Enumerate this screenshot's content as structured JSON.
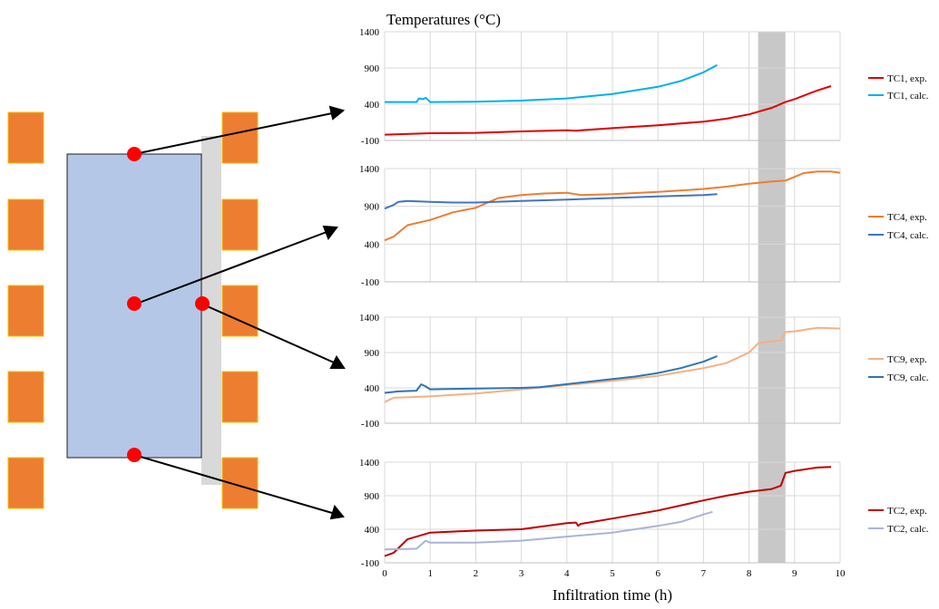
{
  "figure": {
    "title": "Temperatures (°C)",
    "xlabel": "Infiltration time (h)",
    "colors": {
      "heater": "#ed7d31",
      "heater_edge": "#f5c100",
      "sample": "#b4c7e7",
      "gap": "#d9d9d9",
      "dot": "#ff0000",
      "band": "#c8c8c8"
    }
  },
  "chart_data": [
    {
      "type": "line",
      "x_range": [
        0,
        10
      ],
      "ylim": [
        -100,
        1400
      ],
      "yticks": [
        -100,
        400,
        900,
        1400
      ],
      "xticks": [],
      "shaded_band": [
        8.2,
        8.8
      ],
      "series": [
        {
          "name": "TC1, exp.",
          "color": "#e00000",
          "points": [
            [
              0,
              -20
            ],
            [
              1,
              0
            ],
            [
              2,
              5
            ],
            [
              3,
              25
            ],
            [
              4,
              40
            ],
            [
              4.2,
              35
            ],
            [
              5,
              70
            ],
            [
              6,
              110
            ],
            [
              7,
              160
            ],
            [
              7.5,
              200
            ],
            [
              8,
              260
            ],
            [
              8.5,
              350
            ],
            [
              8.8,
              430
            ],
            [
              9,
              470
            ],
            [
              9.5,
              590
            ],
            [
              9.8,
              650
            ]
          ]
        },
        {
          "name": "TC1, calc.",
          "color": "#00b0f0",
          "points": [
            [
              0,
              430
            ],
            [
              0.7,
              430
            ],
            [
              0.75,
              480
            ],
            [
              0.85,
              470
            ],
            [
              0.9,
              490
            ],
            [
              1,
              430
            ],
            [
              2,
              435
            ],
            [
              3,
              450
            ],
            [
              4,
              480
            ],
            [
              5,
              540
            ],
            [
              6,
              640
            ],
            [
              6.5,
              720
            ],
            [
              7,
              840
            ],
            [
              7.3,
              940
            ]
          ]
        }
      ]
    },
    {
      "type": "line",
      "x_range": [
        0,
        10
      ],
      "ylim": [
        -100,
        1400
      ],
      "yticks": [
        -100,
        400,
        900,
        1400
      ],
      "xticks": [],
      "shaded_band": [
        8.2,
        8.8
      ],
      "series": [
        {
          "name": "TC4, exp.",
          "color": "#ed7d31",
          "points": [
            [
              0,
              450
            ],
            [
              0.2,
              500
            ],
            [
              0.5,
              650
            ],
            [
              1,
              720
            ],
            [
              1.5,
              820
            ],
            [
              2,
              880
            ],
            [
              2.3,
              960
            ],
            [
              2.5,
              1010
            ],
            [
              3,
              1050
            ],
            [
              3.5,
              1070
            ],
            [
              4,
              1080
            ],
            [
              4.2,
              1060
            ],
            [
              4.3,
              1050
            ],
            [
              5,
              1060
            ],
            [
              6,
              1090
            ],
            [
              7,
              1130
            ],
            [
              7.5,
              1160
            ],
            [
              8,
              1200
            ],
            [
              8.5,
              1230
            ],
            [
              8.8,
              1240
            ],
            [
              9,
              1290
            ],
            [
              9.2,
              1340
            ],
            [
              9.5,
              1360
            ],
            [
              9.8,
              1360
            ],
            [
              10,
              1345
            ]
          ]
        },
        {
          "name": "TC4, calc.",
          "color": "#4472c4",
          "points": [
            [
              0,
              870
            ],
            [
              0.2,
              920
            ],
            [
              0.3,
              960
            ],
            [
              0.5,
              970
            ],
            [
              1,
              960
            ],
            [
              1.5,
              950
            ],
            [
              2,
              950
            ],
            [
              3,
              970
            ],
            [
              4,
              990
            ],
            [
              5,
              1010
            ],
            [
              6,
              1030
            ],
            [
              7,
              1050
            ],
            [
              7.3,
              1060
            ]
          ]
        }
      ]
    },
    {
      "type": "line",
      "x_range": [
        0,
        10
      ],
      "ylim": [
        -100,
        1400
      ],
      "yticks": [
        -100,
        400,
        900,
        1400
      ],
      "xticks": [],
      "shaded_band": [
        8.2,
        8.8
      ],
      "series": [
        {
          "name": "TC9, exp.",
          "color": "#f4b183",
          "points": [
            [
              0,
              200
            ],
            [
              0.2,
              260
            ],
            [
              1,
              280
            ],
            [
              2,
              320
            ],
            [
              3,
              380
            ],
            [
              4,
              440
            ],
            [
              5,
              500
            ],
            [
              6,
              570
            ],
            [
              7,
              680
            ],
            [
              7.5,
              750
            ],
            [
              8,
              900
            ],
            [
              8.2,
              1030
            ],
            [
              8.5,
              1060
            ],
            [
              8.7,
              1070
            ],
            [
              8.8,
              1190
            ],
            [
              9,
              1200
            ],
            [
              9.5,
              1250
            ],
            [
              10,
              1240
            ]
          ]
        },
        {
          "name": "TC9, calc.",
          "color": "#2e75b6",
          "points": [
            [
              0,
              330
            ],
            [
              0.3,
              350
            ],
            [
              0.7,
              360
            ],
            [
              0.8,
              450
            ],
            [
              0.9,
              420
            ],
            [
              1,
              380
            ],
            [
              2,
              390
            ],
            [
              3,
              400
            ],
            [
              3.4,
              410
            ],
            [
              4.8,
              510
            ],
            [
              5.5,
              560
            ],
            [
              6,
              610
            ],
            [
              6.5,
              680
            ],
            [
              7,
              770
            ],
            [
              7.3,
              850
            ]
          ]
        }
      ]
    },
    {
      "type": "line",
      "x_range": [
        0,
        10
      ],
      "ylim": [
        -100,
        1400
      ],
      "yticks": [
        -100,
        400,
        900,
        1400
      ],
      "xticks": [
        0,
        1,
        2,
        3,
        4,
        5,
        6,
        7,
        8,
        9,
        10
      ],
      "shaded_band": [
        8.2,
        8.8
      ],
      "series": [
        {
          "name": "TC2, exp.",
          "color": "#c00000",
          "points": [
            [
              0,
              0
            ],
            [
              0.2,
              50
            ],
            [
              0.5,
              250
            ],
            [
              1,
              350
            ],
            [
              2,
              380
            ],
            [
              3,
              400
            ],
            [
              4,
              490
            ],
            [
              4.2,
              500
            ],
            [
              4.25,
              450
            ],
            [
              4.3,
              480
            ],
            [
              5,
              560
            ],
            [
              6,
              680
            ],
            [
              7,
              830
            ],
            [
              7.5,
              900
            ],
            [
              8,
              960
            ],
            [
              8.5,
              1000
            ],
            [
              8.7,
              1050
            ],
            [
              8.8,
              1240
            ],
            [
              9,
              1270
            ],
            [
              9.5,
              1320
            ],
            [
              9.8,
              1330
            ]
          ]
        },
        {
          "name": "TC2, calc.",
          "color": "#a9b4d9",
          "points": [
            [
              0,
              100
            ],
            [
              0.7,
              110
            ],
            [
              0.9,
              230
            ],
            [
              1,
              200
            ],
            [
              2,
              200
            ],
            [
              3,
              230
            ],
            [
              4,
              290
            ],
            [
              5,
              350
            ],
            [
              6,
              450
            ],
            [
              6.5,
              510
            ],
            [
              7,
              620
            ],
            [
              7.2,
              660
            ]
          ]
        }
      ]
    }
  ]
}
